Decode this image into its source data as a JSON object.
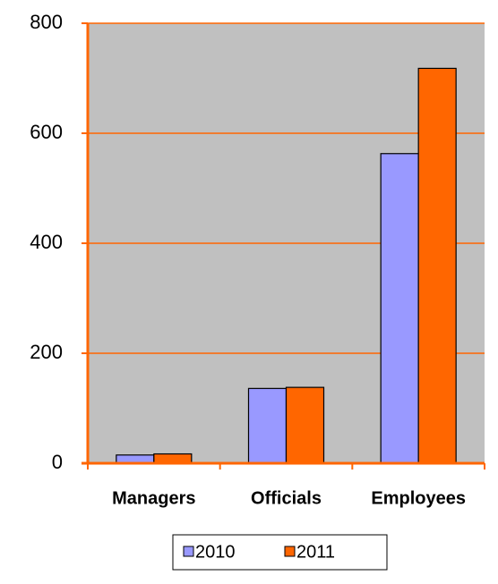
{
  "chart_data": {
    "type": "bar",
    "categories": [
      "Managers",
      "Officials",
      "Employees"
    ],
    "series": [
      {
        "name": "2010",
        "color": "#9999ff",
        "values": [
          15,
          136,
          563
        ]
      },
      {
        "name": "2011",
        "color": "#ff6600",
        "values": [
          17,
          138,
          718
        ]
      }
    ],
    "ylim": [
      0,
      800
    ],
    "yticks": [
      0,
      200,
      400,
      600,
      800
    ],
    "grid": true,
    "plot_background": "#c0c0c0",
    "grid_color": "#ff6600",
    "legend": "bottom"
  }
}
